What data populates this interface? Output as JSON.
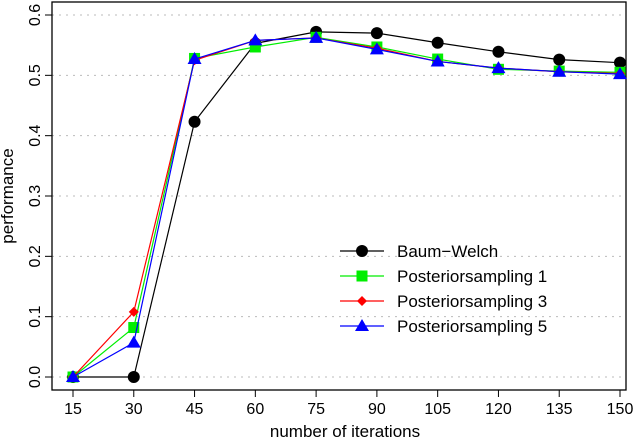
{
  "chart_data": {
    "type": "line",
    "title": "",
    "xlabel": "number of iterations",
    "ylabel": "performance",
    "x": [
      15,
      30,
      45,
      60,
      75,
      90,
      105,
      120,
      135,
      150
    ],
    "xticks": [
      "15",
      "30",
      "45",
      "60",
      "75",
      "90",
      "105",
      "120",
      "135",
      "150"
    ],
    "yticks": [
      "0.0",
      "0.1",
      "0.2",
      "0.3",
      "0.4",
      "0.5",
      "0.6"
    ],
    "ylim": [
      0,
      0.6
    ],
    "grid": "horizontal dotted",
    "legend_position": "bottom-right",
    "series": [
      {
        "name": "Baum−Welch",
        "color": "#000000",
        "marker": "circle",
        "values": [
          0,
          0,
          0.423,
          0.553,
          0.572,
          0.57,
          0.554,
          0.539,
          0.526,
          0.521
        ]
      },
      {
        "name": "Posteriorsampling 1",
        "color": "#00ee00",
        "marker": "square",
        "values": [
          0,
          0.082,
          0.528,
          0.547,
          0.563,
          0.547,
          0.527,
          0.51,
          0.507,
          0.505
        ]
      },
      {
        "name": "Posteriorsampling 3",
        "color": "#ff0000",
        "marker": "diamond",
        "values": [
          0,
          0.108,
          0.525,
          0.558,
          0.562,
          0.545,
          0.523,
          0.512,
          0.506,
          0.503
        ]
      },
      {
        "name": "Posteriorsampling 5",
        "color": "#0000ff",
        "marker": "triangle",
        "values": [
          0,
          0.057,
          0.527,
          0.558,
          0.562,
          0.543,
          0.523,
          0.512,
          0.506,
          0.502
        ]
      }
    ]
  }
}
